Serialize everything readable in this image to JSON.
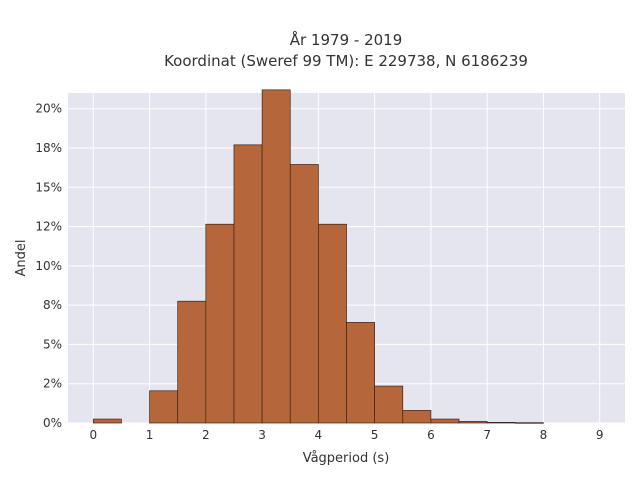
{
  "chart_data": {
    "type": "bar",
    "title": "År 1979 - 2019",
    "subtitle": "Koordinat (Sweref 99 TM): E 229738, N 6186239",
    "xlabel": "Vågperiod (s)",
    "ylabel": "Andel",
    "xlim": [
      -0.45,
      9.45
    ],
    "ylim": [
      0,
      0.21
    ],
    "x_ticks": [
      0,
      1,
      2,
      3,
      4,
      5,
      6,
      7,
      8,
      9
    ],
    "y_ticks": [
      0,
      0.025,
      0.05,
      0.075,
      0.1,
      0.125,
      0.15,
      0.175,
      0.2
    ],
    "y_tick_labels": [
      "0%",
      "2%",
      "5%",
      "8%",
      "10%",
      "12%",
      "15%",
      "18%",
      "20%"
    ],
    "bin_width": 0.5,
    "bins": [
      {
        "start": 0.0,
        "value": 0.0025
      },
      {
        "start": 0.5,
        "value": 0.0
      },
      {
        "start": 1.0,
        "value": 0.0205
      },
      {
        "start": 1.5,
        "value": 0.0775
      },
      {
        "start": 2.0,
        "value": 0.1265
      },
      {
        "start": 2.5,
        "value": 0.177
      },
      {
        "start": 3.0,
        "value": 0.212
      },
      {
        "start": 3.5,
        "value": 0.1645
      },
      {
        "start": 4.0,
        "value": 0.1265
      },
      {
        "start": 4.5,
        "value": 0.064
      },
      {
        "start": 5.0,
        "value": 0.0235
      },
      {
        "start": 5.5,
        "value": 0.008
      },
      {
        "start": 6.0,
        "value": 0.0025
      },
      {
        "start": 6.5,
        "value": 0.001
      },
      {
        "start": 7.0,
        "value": 0.0004
      },
      {
        "start": 7.5,
        "value": 0.0002
      }
    ],
    "grid": true,
    "legend": "none",
    "colors": {
      "bar_fill": "#b5673b",
      "bar_stroke": "#3d2314",
      "plot_background": "#e5e5ef",
      "grid": "#ffffff",
      "text": "#333333"
    }
  }
}
